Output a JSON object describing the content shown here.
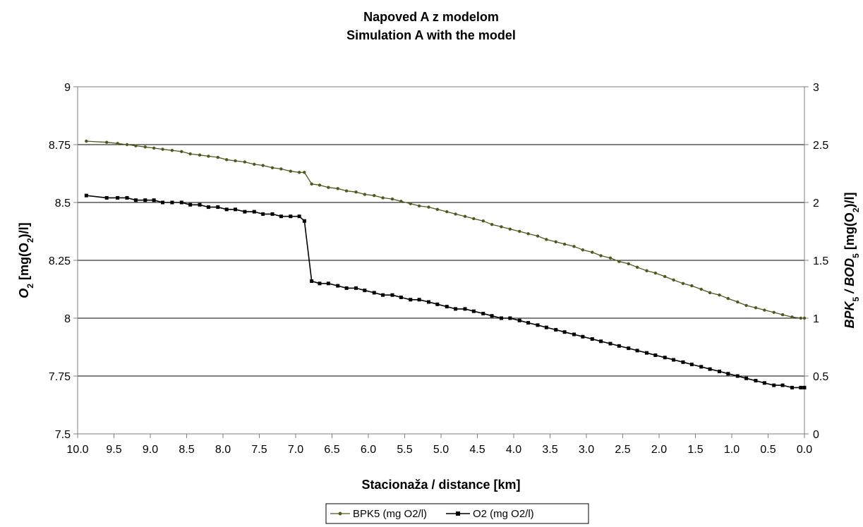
{
  "chart_data": {
    "type": "line",
    "title": "Napoved A z modelom",
    "subtitle": "Simulation A with the model",
    "xlabel": "Stacionaža / distance [km]",
    "ylabel_left": {
      "main": "O",
      "sub": "2",
      "rest": " [mg(O",
      "sub2": "2",
      "end": ")/l]"
    },
    "ylabel_right": {
      "a": "BPK",
      "a_sub": "5",
      "sep": " / ",
      "b": "BOD",
      "b_sub": "5",
      "mid": " [mg(O",
      "sub2": "2",
      "end": ")/l]"
    },
    "x_reversed": true,
    "xlim": [
      10.0,
      0.0
    ],
    "xticks": [
      "10.0",
      "9.5",
      "9.0",
      "8.5",
      "8.0",
      "7.5",
      "7.0",
      "6.5",
      "6.0",
      "5.5",
      "5.0",
      "4.5",
      "4.0",
      "3.5",
      "3.0",
      "2.5",
      "2.0",
      "1.5",
      "1.0",
      "0.5",
      "0.0"
    ],
    "ylim_left": [
      7.5,
      9
    ],
    "yticks_left": [
      "7.5",
      "7.75",
      "8",
      "8.25",
      "8.5",
      "8.75",
      "9"
    ],
    "ylim_right": [
      0,
      3
    ],
    "yticks_right": [
      "0",
      "0.5",
      "1",
      "1.5",
      "2",
      "2.5",
      "3"
    ],
    "grid": "horizontal",
    "legend_position": "bottom",
    "series": [
      {
        "name": "BPK5 (mg O2/l)",
        "axis": "right",
        "color": "#4b5a1e",
        "marker": "circle",
        "x": [
          9.88,
          9.6,
          9.45,
          9.32,
          9.2,
          9.07,
          8.95,
          8.83,
          8.7,
          8.57,
          8.45,
          8.32,
          8.2,
          8.07,
          7.95,
          7.83,
          7.7,
          7.57,
          7.45,
          7.32,
          7.2,
          7.07,
          6.95,
          6.88,
          6.78,
          6.67,
          6.55,
          6.42,
          6.3,
          6.17,
          6.05,
          5.92,
          5.8,
          5.67,
          5.55,
          5.42,
          5.3,
          5.17,
          5.05,
          4.92,
          4.8,
          4.67,
          4.55,
          4.42,
          4.3,
          4.17,
          4.05,
          3.92,
          3.8,
          3.67,
          3.55,
          3.42,
          3.3,
          3.17,
          3.05,
          2.92,
          2.8,
          2.67,
          2.55,
          2.42,
          2.3,
          2.17,
          2.05,
          1.92,
          1.8,
          1.67,
          1.55,
          1.42,
          1.3,
          1.17,
          1.05,
          0.92,
          0.8,
          0.67,
          0.55,
          0.42,
          0.3,
          0.17,
          0.05,
          0.0
        ],
        "values": [
          2.53,
          2.52,
          2.51,
          2.5,
          2.49,
          2.48,
          2.47,
          2.46,
          2.45,
          2.44,
          2.42,
          2.41,
          2.4,
          2.39,
          2.37,
          2.36,
          2.35,
          2.33,
          2.32,
          2.3,
          2.29,
          2.27,
          2.26,
          2.26,
          2.16,
          2.15,
          2.13,
          2.12,
          2.1,
          2.09,
          2.07,
          2.06,
          2.04,
          2.03,
          2.01,
          1.99,
          1.97,
          1.96,
          1.94,
          1.92,
          1.9,
          1.88,
          1.86,
          1.84,
          1.81,
          1.79,
          1.77,
          1.75,
          1.73,
          1.71,
          1.68,
          1.66,
          1.64,
          1.62,
          1.59,
          1.57,
          1.54,
          1.52,
          1.49,
          1.47,
          1.44,
          1.41,
          1.39,
          1.36,
          1.33,
          1.3,
          1.28,
          1.25,
          1.22,
          1.2,
          1.17,
          1.14,
          1.11,
          1.09,
          1.07,
          1.05,
          1.03,
          1.01,
          1.0,
          1.0
        ]
      },
      {
        "name": "O2 (mg O2/l)",
        "axis": "left",
        "color": "#000000",
        "marker": "square",
        "x": [
          9.88,
          9.6,
          9.45,
          9.32,
          9.2,
          9.07,
          8.95,
          8.83,
          8.7,
          8.57,
          8.45,
          8.32,
          8.2,
          8.07,
          7.95,
          7.83,
          7.7,
          7.57,
          7.45,
          7.32,
          7.2,
          7.07,
          6.95,
          6.88,
          6.78,
          6.67,
          6.55,
          6.42,
          6.3,
          6.17,
          6.05,
          5.92,
          5.8,
          5.67,
          5.55,
          5.42,
          5.3,
          5.17,
          5.05,
          4.92,
          4.8,
          4.67,
          4.55,
          4.42,
          4.3,
          4.17,
          4.05,
          3.92,
          3.8,
          3.67,
          3.55,
          3.42,
          3.3,
          3.17,
          3.05,
          2.92,
          2.8,
          2.67,
          2.55,
          2.42,
          2.3,
          2.17,
          2.05,
          1.92,
          1.8,
          1.67,
          1.55,
          1.42,
          1.3,
          1.17,
          1.05,
          0.92,
          0.8,
          0.67,
          0.55,
          0.42,
          0.3,
          0.17,
          0.05,
          0.0
        ],
        "values": [
          8.53,
          8.52,
          8.52,
          8.52,
          8.51,
          8.51,
          8.51,
          8.5,
          8.5,
          8.5,
          8.49,
          8.49,
          8.48,
          8.48,
          8.47,
          8.47,
          8.46,
          8.46,
          8.45,
          8.45,
          8.44,
          8.44,
          8.44,
          8.42,
          8.16,
          8.15,
          8.15,
          8.14,
          8.13,
          8.13,
          8.12,
          8.11,
          8.1,
          8.1,
          8.09,
          8.08,
          8.08,
          8.07,
          8.06,
          8.05,
          8.04,
          8.04,
          8.03,
          8.02,
          8.01,
          8.0,
          8.0,
          7.99,
          7.98,
          7.97,
          7.96,
          7.95,
          7.94,
          7.93,
          7.92,
          7.91,
          7.9,
          7.89,
          7.88,
          7.87,
          7.86,
          7.85,
          7.84,
          7.83,
          7.82,
          7.81,
          7.8,
          7.79,
          7.78,
          7.77,
          7.76,
          7.75,
          7.74,
          7.73,
          7.72,
          7.71,
          7.71,
          7.7,
          7.7,
          7.7
        ]
      }
    ]
  }
}
